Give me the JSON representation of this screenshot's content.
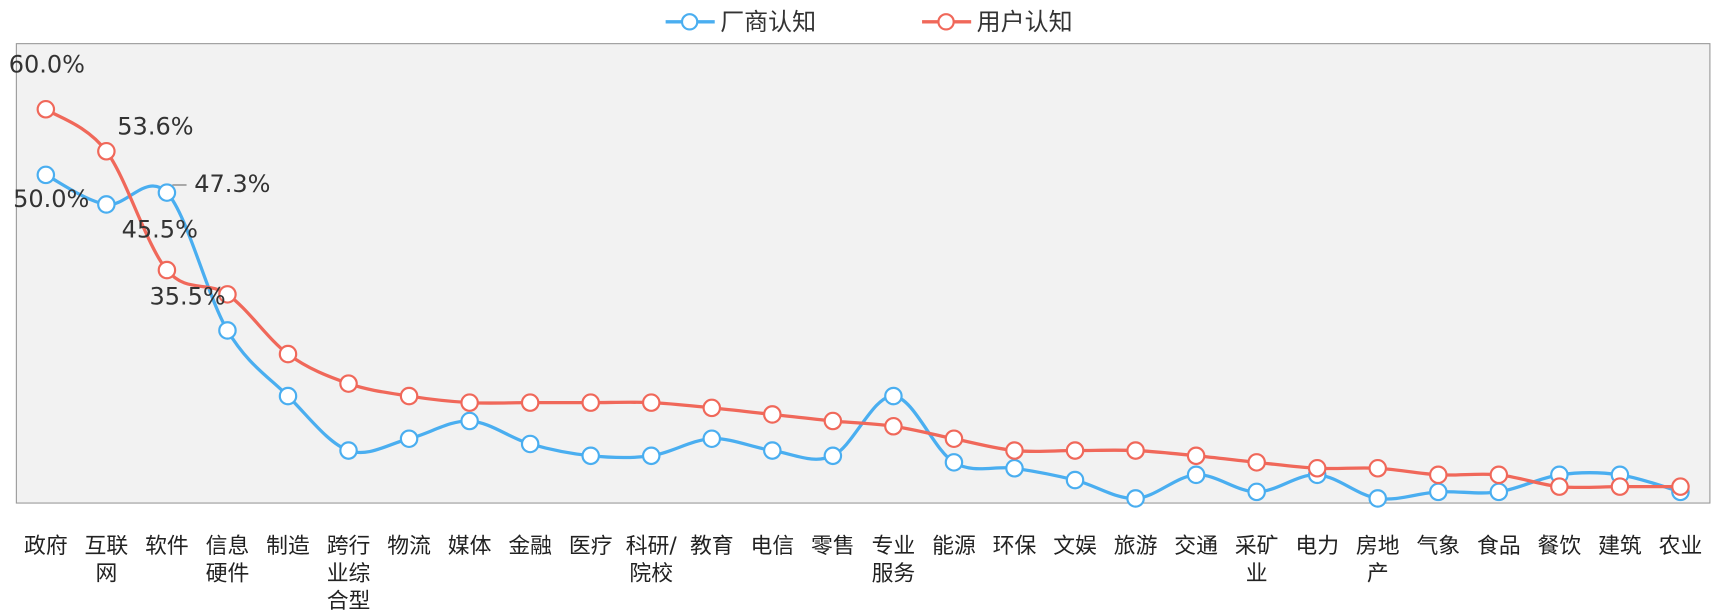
{
  "chart_data": {
    "type": "line",
    "categories": [
      "政府",
      "互联\n网",
      "软件",
      "信息\n硬件",
      "制造",
      "跨行\n业综\n合型",
      "物流",
      "媒体",
      "金融",
      "医疗",
      "科研/\n院校",
      "教育",
      "电信",
      "零售",
      "专业\n服务",
      "能源",
      "环保",
      "文娱",
      "旅游",
      "交通",
      "采矿\n业",
      "电力",
      "房地\n产",
      "气象",
      "食品",
      "餐饮",
      "建筑",
      "农业"
    ],
    "series": [
      {
        "name": "厂商认知",
        "color": "#4aaef0",
        "values": [
          50.0,
          45.5,
          47.3,
          26.3,
          16.3,
          8.0,
          9.8,
          12.5,
          9.0,
          7.2,
          7.2,
          9.8,
          8.0,
          7.2,
          16.3,
          6.2,
          5.3,
          3.5,
          0.7,
          4.3,
          1.7,
          4.3,
          0.7,
          1.7,
          1.7,
          4.3,
          4.3,
          1.7
        ],
        "value_labels": [
          "50.0%",
          "45.5%",
          "47.3%",
          null,
          null,
          null,
          null,
          null,
          null,
          null,
          null,
          null,
          null,
          null,
          null,
          null,
          null,
          null,
          null,
          null,
          null,
          null,
          null,
          null,
          null,
          null,
          null,
          null
        ]
      },
      {
        "name": "用户认知",
        "color": "#f0685a",
        "values": [
          60.0,
          53.6,
          35.5,
          31.8,
          22.7,
          18.2,
          16.3,
          15.3,
          15.3,
          15.3,
          15.3,
          14.5,
          13.5,
          12.5,
          11.7,
          9.8,
          8.0,
          8.0,
          8.0,
          7.2,
          6.2,
          5.3,
          5.3,
          4.3,
          4.3,
          2.5,
          2.5,
          2.5
        ],
        "value_labels": [
          "60.0%",
          "53.6%",
          "35.5%",
          null,
          null,
          null,
          null,
          null,
          null,
          null,
          null,
          null,
          null,
          null,
          null,
          null,
          null,
          null,
          null,
          null,
          null,
          null,
          null,
          null,
          null,
          null,
          null,
          null
        ]
      }
    ],
    "ylim": [
      0,
      70
    ],
    "legend": "top"
  }
}
